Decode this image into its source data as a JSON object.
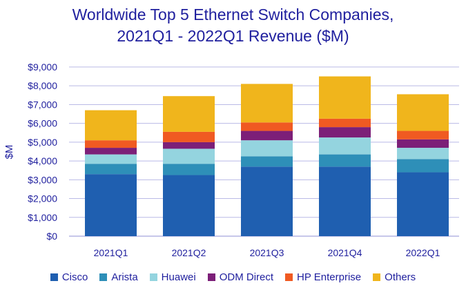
{
  "chart_data": {
    "type": "bar",
    "stacked": true,
    "title_line1": "Worldwide Top 5 Ethernet Switch Companies,",
    "title_line2": "2021Q1 - 2022Q1 Revenue ($M)",
    "ylabel": "$M",
    "xlabel": "",
    "ylim": [
      0,
      9000
    ],
    "yticks": [
      0,
      1000,
      2000,
      3000,
      4000,
      5000,
      6000,
      7000,
      8000,
      9000
    ],
    "ytick_labels": [
      "$0",
      "$1,000",
      "$2,000",
      "$3,000",
      "$4,000",
      "$5,000",
      "$6,000",
      "$7,000",
      "$8,000",
      "$9,000"
    ],
    "grid": true,
    "legend_position": "bottom",
    "categories": [
      "2021Q1",
      "2021Q2",
      "2021Q3",
      "2021Q4",
      "2022Q1"
    ],
    "series": [
      {
        "name": "Cisco",
        "color": "#1f5fb0",
        "values": [
          3300,
          3250,
          3700,
          3700,
          3400
        ]
      },
      {
        "name": "Arista",
        "color": "#2e8fb8",
        "values": [
          550,
          600,
          550,
          650,
          700
        ]
      },
      {
        "name": "Huawei",
        "color": "#94d4df",
        "values": [
          500,
          800,
          850,
          900,
          600
        ]
      },
      {
        "name": "ODM Direct",
        "color": "#7c1f78",
        "values": [
          350,
          350,
          500,
          550,
          450
        ]
      },
      {
        "name": "HP Enterprise",
        "color": "#f05a22",
        "values": [
          400,
          550,
          450,
          450,
          450
        ]
      },
      {
        "name": "Others",
        "color": "#f0b51c",
        "values": [
          1600,
          1900,
          2050,
          2250,
          1950
        ]
      }
    ]
  }
}
